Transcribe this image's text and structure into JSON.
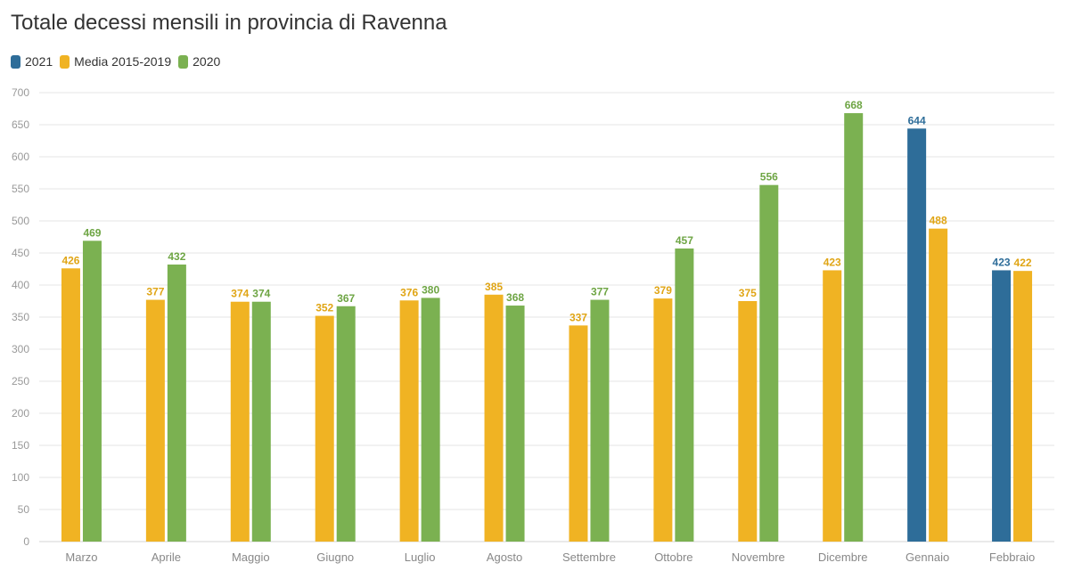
{
  "chart_data": {
    "type": "bar",
    "title": "Totale decessi mensili in provincia di Ravenna",
    "categories": [
      "Marzo",
      "Aprile",
      "Maggio",
      "Giugno",
      "Luglio",
      "Agosto",
      "Settembre",
      "Ottobre",
      "Novembre",
      "Dicembre",
      "Gennaio",
      "Febbraio"
    ],
    "series": [
      {
        "name": "2021",
        "color": "#2e6d99",
        "values": [
          null,
          null,
          null,
          null,
          null,
          null,
          null,
          null,
          null,
          null,
          644,
          423
        ]
      },
      {
        "name": "Media 2015-2019",
        "color": "#f0b323",
        "values": [
          426,
          377,
          374,
          352,
          376,
          385,
          337,
          379,
          375,
          423,
          488,
          422
        ]
      },
      {
        "name": "2020",
        "color": "#7bb151",
        "values": [
          469,
          432,
          374,
          367,
          380,
          368,
          377,
          457,
          556,
          668,
          null,
          null
        ]
      }
    ],
    "yticks": [
      0,
      50,
      100,
      150,
      200,
      250,
      300,
      350,
      400,
      450,
      500,
      550,
      600,
      650,
      700
    ],
    "ylim": [
      0,
      700
    ],
    "grid": true,
    "legend": "top-left",
    "label_colors": {
      "2021": "#2e6d99",
      "Media 2015-2019": "#e0a515",
      "2020": "#6ea544"
    }
  }
}
